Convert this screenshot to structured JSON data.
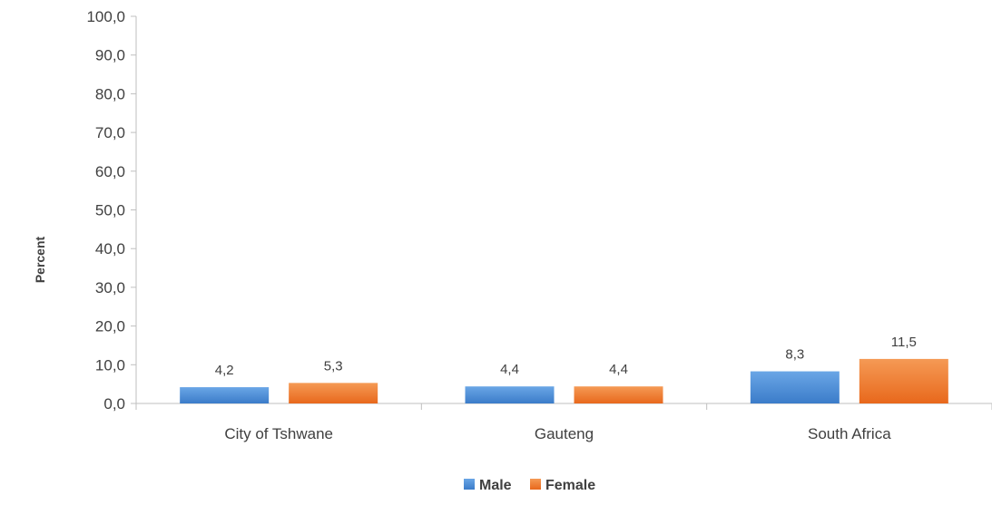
{
  "chart_data": {
    "type": "bar",
    "categories": [
      "City of Tshwane",
      "Gauteng",
      "South Africa"
    ],
    "series": [
      {
        "name": "Male",
        "values": [
          4.2,
          4.4,
          8.3
        ],
        "labels": [
          "4,2",
          "4,4",
          "8,3"
        ],
        "color": "#4f8fd6"
      },
      {
        "name": "Female",
        "values": [
          5.3,
          4.4,
          11.5
        ],
        "labels": [
          "5,3",
          "4,4",
          "11,5"
        ],
        "color": "#f07b2c"
      }
    ],
    "ylabel": "Percent",
    "ylim": [
      0,
      100
    ],
    "yticks": [
      0,
      10,
      20,
      30,
      40,
      50,
      60,
      70,
      80,
      90,
      100
    ],
    "ytick_labels": [
      "0,0",
      "10,0",
      "20,0",
      "30,0",
      "40,0",
      "50,0",
      "60,0",
      "70,0",
      "80,0",
      "90,0",
      "100,0"
    ],
    "grid": false,
    "legend_position": "bottom"
  }
}
